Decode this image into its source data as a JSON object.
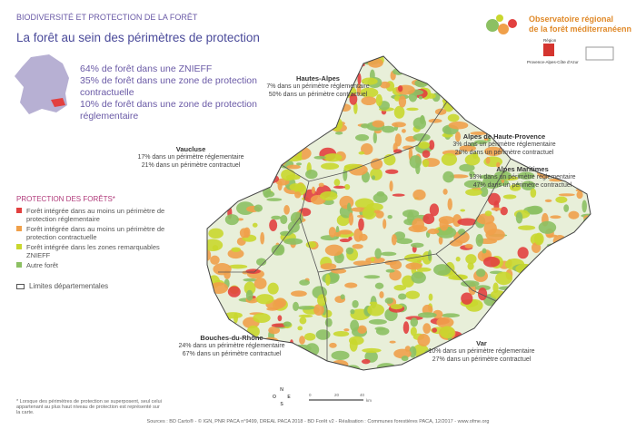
{
  "header": {
    "kicker": "BIODIVERSITÉ ET PROTECTION DE LA FORÊT",
    "title": "La forêt au sein des périmètres de protection"
  },
  "logo": {
    "name_line1": "Observatoire régional",
    "name_line2": "de la forêt méditerranéenne",
    "region_line1": "Région",
    "region_line2": "Provence-Alpes-Côte d'Azur"
  },
  "summary": [
    "64% de forêt dans une ZNIEFF",
    "35% de forêt dans une zone de protection contractuelle",
    "10% de forêt dans une zone de protection réglementaire"
  ],
  "departments": [
    {
      "name": "Hautes-Alpes",
      "lines": [
        "7% dans un périmètre réglementaire",
        "50% dans un périmètre contractuel"
      ]
    },
    {
      "name": "Alpes de Haute-Provence",
      "lines": [
        "3% dans un périmètre réglementaire",
        "28% dans un périmètre contractuel"
      ]
    },
    {
      "name": "Alpes Maritimes",
      "lines": [
        "13% dans un périmètre réglementaire",
        "47% dans un périmètre contractuel"
      ]
    },
    {
      "name": "Vaucluse",
      "lines": [
        "17% dans un périmètre réglementaire",
        "21% dans un périmètre contractuel"
      ]
    },
    {
      "name": "Bouches-du-Rhône",
      "lines": [
        "24% dans un périmètre réglementaire",
        "67% dans un périmètre contractuel"
      ]
    },
    {
      "name": "Var",
      "lines": [
        "10% dans un périmètre réglementaire",
        "27% dans un périmètre contractuel"
      ]
    }
  ],
  "legend": {
    "title": "PROTECTION DES FORÊTS*",
    "items": [
      {
        "label": "Forêt intégrée dans au moins un périmètre de protection réglementaire",
        "color": "#e2403f"
      },
      {
        "label": "Forêt intégrée dans au moins un périmètre de protection contractuelle",
        "color": "#f0a04a"
      },
      {
        "label": "Forêt intégrée dans les zones remarquables ZNIEFF",
        "color": "#c9d72e"
      },
      {
        "label": "Autre forêt",
        "color": "#8cc063"
      }
    ],
    "boundary": "Limites départementales"
  },
  "compass": [
    "N",
    "E",
    "S",
    "O"
  ],
  "scale": [
    "0",
    "20",
    "40",
    "km"
  ],
  "footnote": "* Lorsque des périmètres de protection se superposent, seul celui appartenant au plus haut niveau de protection est représenté sur la carte.",
  "sources": "Sources : BD Carto® - © IGN, PNR PACA n°9499, DREAL PACA 2018 - BD Forêt v2 - Réalisation : Communes forestières PACA, 12/2017 - www.ofme.org"
}
